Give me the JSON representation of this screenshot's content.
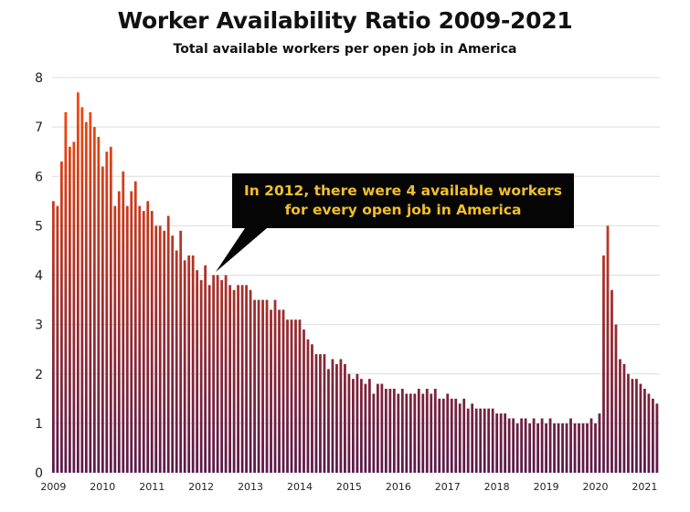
{
  "colors": {
    "bar_top": "#ff4a08",
    "bar_bottom": "#5a1a4a",
    "grid": "#dddddd",
    "callout_bg": "#050505",
    "callout_text": "#f2c029"
  },
  "chart_data": {
    "type": "bar",
    "title": "Worker Availability Ratio 2009-2021",
    "subtitle": "Total available workers per open job in America",
    "xlabel": "",
    "ylabel": "",
    "ylim": [
      0,
      8
    ],
    "y_ticks": [
      "0",
      "1",
      "2",
      "3",
      "4",
      "5",
      "6",
      "7",
      "8"
    ],
    "x_ticks": [
      "2009",
      "2010",
      "2011",
      "2012",
      "2013",
      "2014",
      "2015",
      "2016",
      "2017",
      "2018",
      "2019",
      "2020",
      "2021"
    ],
    "grid": true,
    "start": "2009-01",
    "frequency": "monthly",
    "annotation": {
      "lines": [
        "In 2012, there were 4 available workers",
        "for every open job in America"
      ],
      "points_to": "2012-04"
    },
    "values": [
      5.5,
      5.4,
      6.3,
      7.3,
      6.6,
      6.7,
      7.7,
      7.4,
      7.1,
      7.3,
      7.0,
      6.8,
      6.2,
      6.5,
      6.6,
      5.4,
      5.7,
      6.1,
      5.4,
      5.7,
      5.9,
      5.4,
      5.3,
      5.5,
      5.3,
      5.0,
      5.0,
      4.9,
      5.2,
      4.8,
      4.5,
      4.9,
      4.3,
      4.4,
      4.4,
      4.1,
      3.9,
      4.2,
      3.8,
      4.0,
      4.0,
      3.9,
      4.0,
      3.8,
      3.7,
      3.8,
      3.8,
      3.8,
      3.7,
      3.5,
      3.5,
      3.5,
      3.5,
      3.3,
      3.5,
      3.3,
      3.3,
      3.1,
      3.1,
      3.1,
      3.1,
      2.9,
      2.7,
      2.6,
      2.4,
      2.4,
      2.4,
      2.1,
      2.3,
      2.2,
      2.3,
      2.2,
      2.0,
      1.9,
      2.0,
      1.9,
      1.8,
      1.9,
      1.6,
      1.8,
      1.8,
      1.7,
      1.7,
      1.7,
      1.6,
      1.7,
      1.6,
      1.6,
      1.6,
      1.7,
      1.6,
      1.7,
      1.6,
      1.7,
      1.5,
      1.5,
      1.6,
      1.5,
      1.5,
      1.4,
      1.5,
      1.3,
      1.4,
      1.3,
      1.3,
      1.3,
      1.3,
      1.3,
      1.2,
      1.2,
      1.2,
      1.1,
      1.1,
      1.0,
      1.1,
      1.1,
      1.0,
      1.1,
      1.0,
      1.1,
      1.0,
      1.1,
      1.0,
      1.0,
      1.0,
      1.0,
      1.1,
      1.0,
      1.0,
      1.0,
      1.0,
      1.1,
      1.0,
      1.2,
      4.4,
      5.0,
      3.7,
      3.0,
      2.3,
      2.2,
      2.0,
      1.9,
      1.9,
      1.8,
      1.7,
      1.6,
      1.5,
      1.4
    ]
  }
}
